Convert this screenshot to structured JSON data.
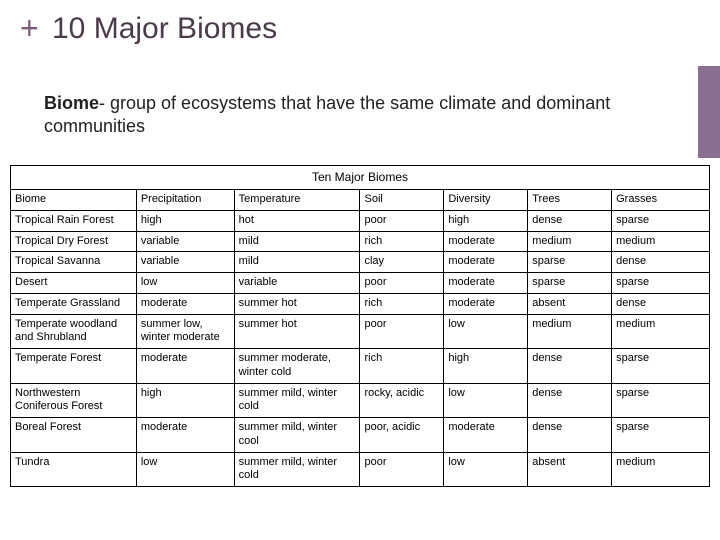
{
  "header": {
    "plus": "+",
    "title": "10 Major Biomes"
  },
  "definition": {
    "term": "Biome",
    "rest": "- group of ecosystems that have the same climate and dominant communities"
  },
  "table": {
    "caption": "Ten Major Biomes",
    "columns": [
      "Biome",
      "Precipitation",
      "Temperature",
      "Soil",
      "Diversity",
      "Trees",
      "Grasses"
    ],
    "rows": [
      [
        "Tropical Rain Forest",
        "high",
        "hot",
        "poor",
        "high",
        "dense",
        "sparse"
      ],
      [
        "Tropical Dry Forest",
        "variable",
        "mild",
        "rich",
        "moderate",
        "medium",
        "medium"
      ],
      [
        "Tropical Savanna",
        "variable",
        "mild",
        "clay",
        "moderate",
        "sparse",
        "dense"
      ],
      [
        "Desert",
        "low",
        "variable",
        "poor",
        "moderate",
        "sparse",
        "sparse"
      ],
      [
        "Temperate Grassland",
        "moderate",
        "summer hot",
        "rich",
        "moderate",
        "absent",
        "dense"
      ],
      [
        "Temperate woodland and Shrubland",
        "summer low, winter moderate",
        "summer hot",
        "poor",
        "low",
        "medium",
        "medium"
      ],
      [
        "Temperate Forest",
        "moderate",
        "summer moderate, winter cold",
        "rich",
        "high",
        "dense",
        "sparse"
      ],
      [
        "Northwestern Coniferous Forest",
        "high",
        "summer mild, winter cold",
        "rocky, acidic",
        "low",
        "dense",
        "sparse"
      ],
      [
        "Boreal Forest",
        "moderate",
        "summer mild, winter cool",
        "poor, acidic",
        "moderate",
        "dense",
        "sparse"
      ],
      [
        "Tundra",
        "low",
        "summer mild, winter cold",
        "poor",
        "low",
        "absent",
        "medium"
      ]
    ],
    "group_breaks": [
      1,
      2,
      5,
      6,
      7,
      8,
      9,
      10
    ],
    "colors": {
      "border": "#000000",
      "text": "#000000",
      "background": "#ffffff"
    }
  },
  "styling": {
    "accent_color": "#8a7090",
    "plus_color": "#7a5c7a",
    "title_color": "#4a3a4a",
    "title_fontsize": 30,
    "definition_fontsize": 18,
    "cell_fontsize": 11
  }
}
